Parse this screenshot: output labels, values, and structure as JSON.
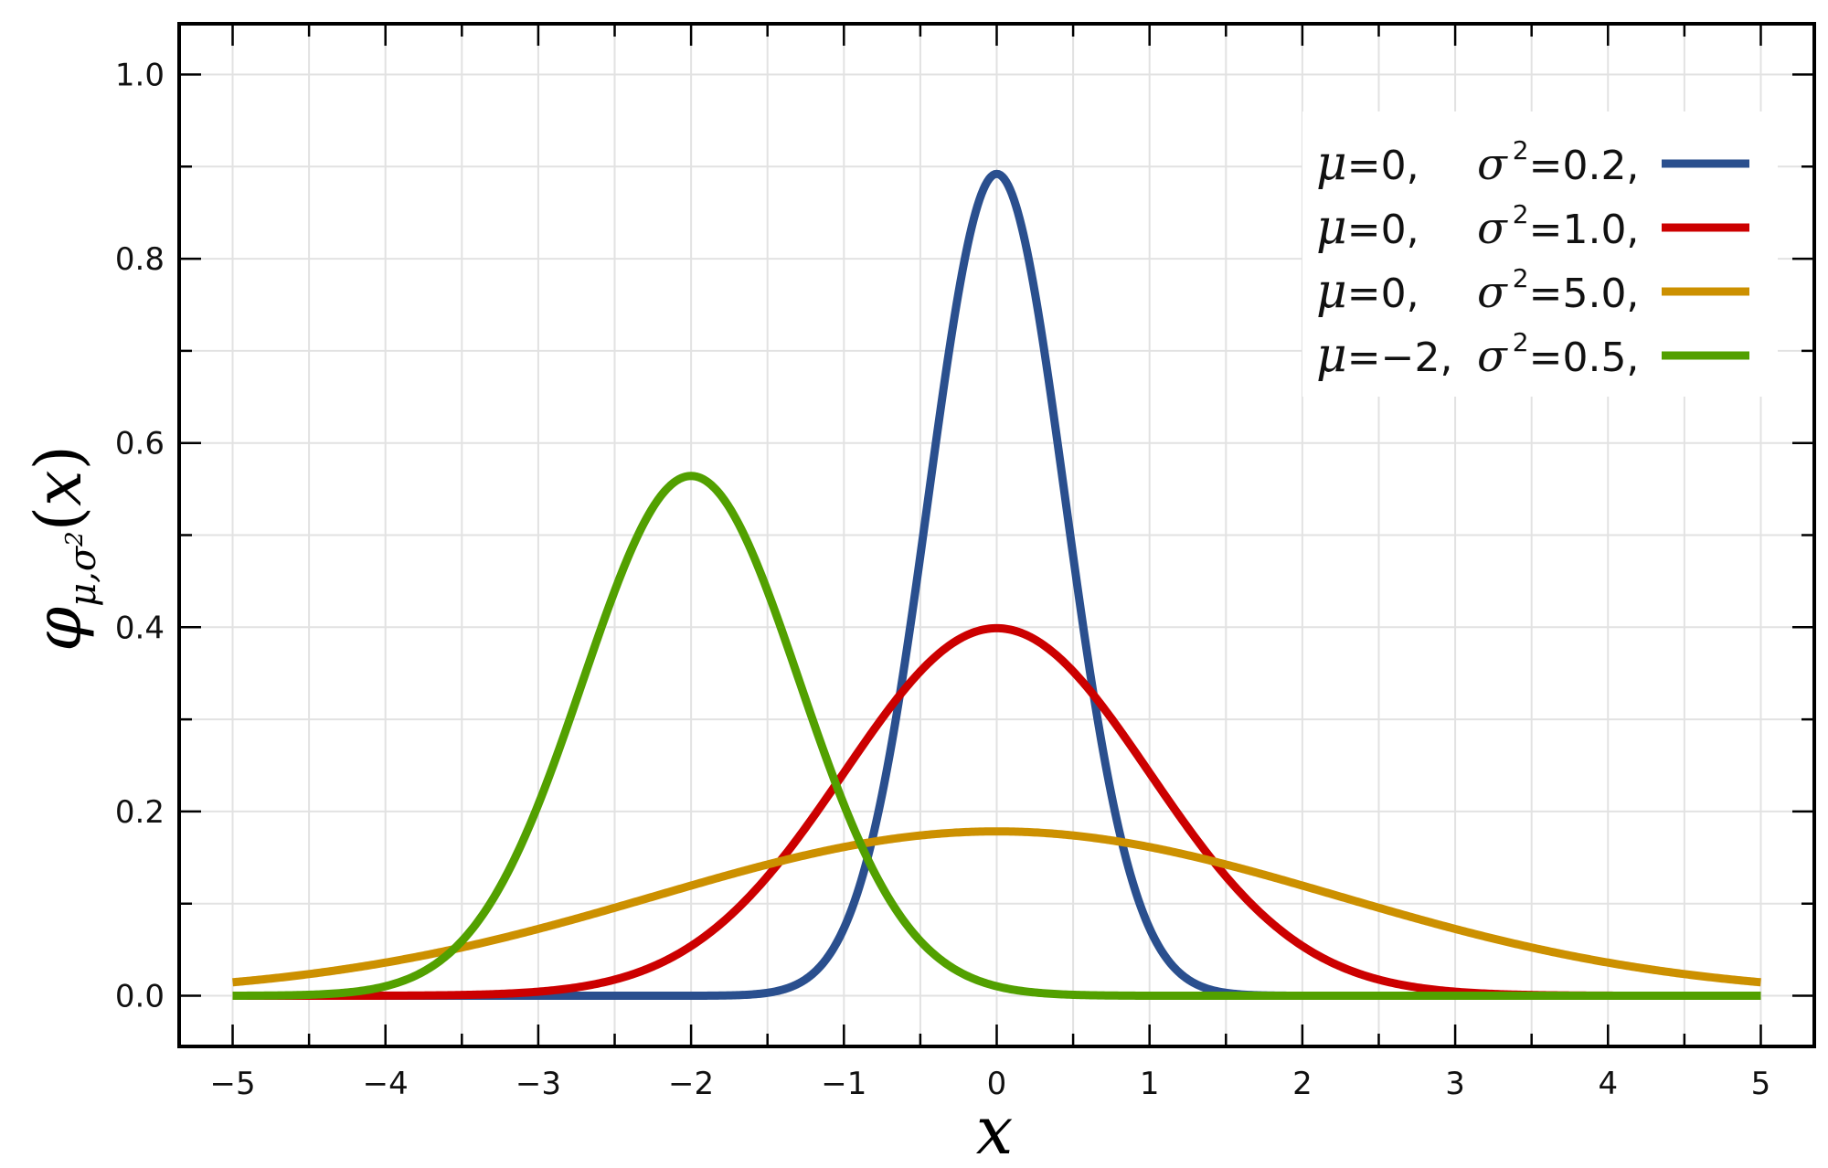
{
  "chart_data": {
    "type": "line",
    "title": "",
    "xlabel": "x",
    "ylabel": {
      "symbol": "φ",
      "subscript_mu": "μ",
      "subscript_sep": ",",
      "subscript_sigma": "σ",
      "subscript_sigma_power": "2",
      "arg_open": "(",
      "arg_var": "x",
      "arg_close": ")"
    },
    "xlim": [
      -5.35,
      5.35
    ],
    "ylim": [
      -0.055,
      1.055
    ],
    "x_ticks": [
      -5,
      -4,
      -3,
      -2,
      -1,
      0,
      1,
      2,
      3,
      4,
      5
    ],
    "x_tick_labels": [
      "−5",
      "−4",
      "−3",
      "−2",
      "−1",
      "0",
      "1",
      "2",
      "3",
      "4",
      "5"
    ],
    "y_ticks": [
      0.0,
      0.2,
      0.4,
      0.6,
      0.8,
      1.0
    ],
    "y_tick_labels": [
      "0.0",
      "0.2",
      "0.4",
      "0.6",
      "0.8",
      "1.0"
    ],
    "grid": true,
    "legend_position": "top-right",
    "series": [
      {
        "mu": 0,
        "sigma2": 0.2,
        "color": "#2a4f8e",
        "label_mu": "μ",
        "label_mu_value": "=0,",
        "label_sigma": "σ",
        "label_sigma_power": "2",
        "label_sigma_value": "=0.2,"
      },
      {
        "mu": 0,
        "sigma2": 1.0,
        "color": "#cc0000",
        "label_mu": "μ",
        "label_mu_value": "=0,",
        "label_sigma": "σ",
        "label_sigma_power": "2",
        "label_sigma_value": "=1.0,"
      },
      {
        "mu": 0,
        "sigma2": 5.0,
        "color": "#cc9000",
        "label_mu": "μ",
        "label_mu_value": "=0,",
        "label_sigma": "σ",
        "label_sigma_power": "2",
        "label_sigma_value": "=5.0,"
      },
      {
        "mu": -2,
        "sigma2": 0.5,
        "color": "#52a000",
        "label_mu": "μ",
        "label_mu_value": "=−2,",
        "label_sigma": "σ",
        "label_sigma_power": "2",
        "label_sigma_value": "=0.5,"
      }
    ]
  }
}
